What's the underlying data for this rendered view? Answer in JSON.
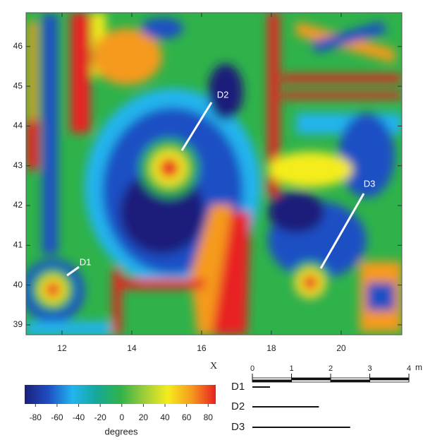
{
  "chart_data": {
    "type": "heatmap",
    "xlabel": "X",
    "xlim": [
      10.97,
      21.74
    ],
    "ylim": [
      38.75,
      46.85
    ],
    "xticks": [
      12,
      14,
      16,
      18,
      20
    ],
    "yticks": [
      39,
      40,
      41,
      42,
      43,
      44,
      45,
      46
    ],
    "annotations": [
      "D1",
      "D2",
      "D3"
    ],
    "colorbar": {
      "label": "degrees",
      "lim": [
        -90,
        87
      ],
      "ticks": [
        -80,
        -60,
        -40,
        -20,
        0,
        20,
        40,
        60,
        80
      ],
      "colors": [
        "#1b1f7a",
        "#1f4fc4",
        "#22b4ee",
        "#16a89a",
        "#2fb24a",
        "#9ccc3a",
        "#f5ec1e",
        "#f59a1e",
        "#e82020"
      ]
    },
    "scale_bar": {
      "unit": "m",
      "xlim": [
        0,
        4
      ],
      "ticks": [
        0,
        1,
        2,
        3,
        4
      ],
      "lengths": [
        {
          "name": "D1",
          "value": 0.45
        },
        {
          "name": "D2",
          "value": 1.7
        },
        {
          "name": "D3",
          "value": 2.5
        }
      ]
    }
  }
}
